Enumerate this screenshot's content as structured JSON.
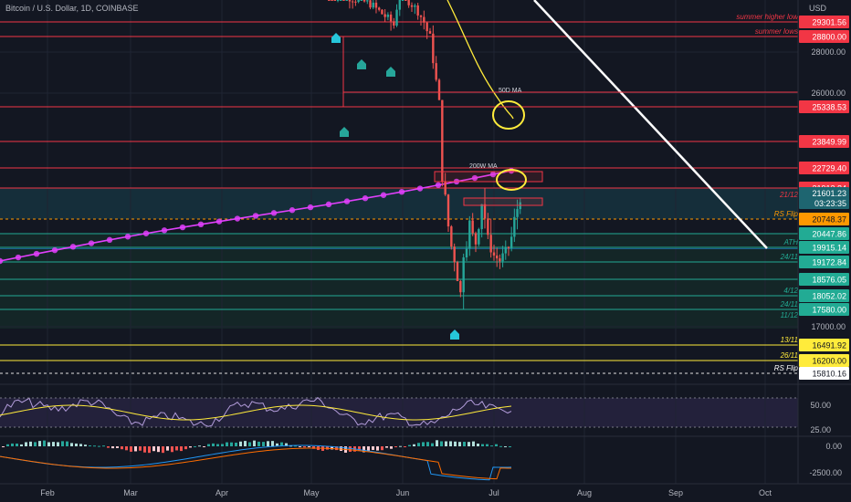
{
  "header": {
    "symbol_title": "Bitcoin / U.S. Dollar, 1D, COINBASE",
    "currency": "USD"
  },
  "chart_data": {
    "type": "candlestick",
    "symbol": "Bitcoin / U.S. Dollar",
    "interval": "1D",
    "exchange": "COINBASE",
    "x_ticks": [
      "Feb",
      "Mar",
      "Apr",
      "May",
      "Jun",
      "Jul",
      "Aug",
      "Sep",
      "Oct"
    ],
    "y_ticks": [
      {
        "value": 28000,
        "label": "28000.00"
      },
      {
        "value": 26000,
        "label": "26000.00"
      },
      {
        "value": 17000,
        "label": "17000.00"
      }
    ],
    "last_price": {
      "label": "21601.23",
      "countdown": "03:23:35"
    },
    "price_levels": [
      {
        "label": "29301.56",
        "note": "summer higher low",
        "style": "red",
        "color": "#f23645"
      },
      {
        "label": "28800.00",
        "note": "summer lows",
        "style": "red",
        "color": "#f23645"
      },
      {
        "label": "25338.53",
        "note": "",
        "style": "red",
        "color": "#f23645"
      },
      {
        "label": "23849.99",
        "note": "",
        "style": "red",
        "color": "#f23645"
      },
      {
        "label": "22729.40",
        "note": "",
        "style": "red",
        "color": "#f23645"
      },
      {
        "label": "21913.84",
        "note": "",
        "style": "red",
        "color": "#f23645"
      },
      {
        "label": "20748.37",
        "note": "RS Flip",
        "style": "orange-dashed",
        "color": "#ff9800"
      },
      {
        "label": "20447.86",
        "note": "",
        "style": "green",
        "color": "#22ab94"
      },
      {
        "label": "19915.14",
        "note": "ATH",
        "style": "green",
        "color": "#22ab94"
      },
      {
        "label": "19172.84",
        "note": "24/11",
        "style": "green",
        "color": "#22ab94"
      },
      {
        "label": "18576.05",
        "note": "",
        "style": "green",
        "color": "#22ab94"
      },
      {
        "label": "18052.02",
        "note": "4/12",
        "style": "green",
        "color": "#22ab94"
      },
      {
        "label": "17580.00",
        "note": "24/11",
        "style": "green",
        "color": "#22ab94"
      },
      {
        "label": "16491.92",
        "note": "13/11",
        "style": "yellow",
        "color": "#ffeb3b"
      },
      {
        "label": "16200.00",
        "note": "26/11",
        "style": "yellow",
        "color": "#ffeb3b"
      },
      {
        "label": "15810.16",
        "note": "RS Flip",
        "style": "white-dashed",
        "color": "#ffffff"
      }
    ],
    "extra_notes": [
      {
        "text": "21/12",
        "color": "#f23645"
      },
      {
        "text": "11/12",
        "color": "#22ab94"
      }
    ],
    "annotations": [
      {
        "text": "50D MA"
      },
      {
        "text": "200W MA"
      }
    ],
    "rsi_panel": {
      "ticks": [
        "50.00",
        "25.00"
      ]
    },
    "macd_panel": {
      "ticks": [
        "0.00",
        "-2500.00"
      ]
    },
    "colors": {
      "background": "#131722",
      "up": "#26a69a",
      "down": "#ef5350",
      "ma_200w": "#e040fb",
      "ma_50d": "#ffeb3b",
      "trendline": "#ffffff",
      "highlight_circle": "#ffeb3b"
    }
  }
}
